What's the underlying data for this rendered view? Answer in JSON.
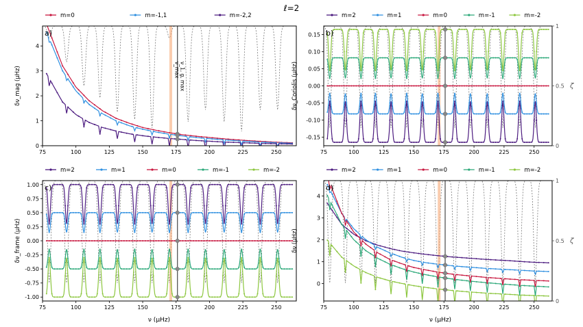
{
  "figure": {
    "suptitle": "ℓ=2",
    "x_label": "ν (μHz)"
  },
  "colors": {
    "m2": "#4b1a7f",
    "m1": "#2e8fe0",
    "m0": "#c8173f",
    "mm1": "#2aa878",
    "mm2": "#8cc63e",
    "zeta": "#555555",
    "marker_band": "#f5a36b",
    "marker_line": "#555555"
  },
  "chart_data": [
    {
      "panel": "a)",
      "type": "line",
      "ylabel": "δν_mag (μHz)",
      "xlim": [
        75,
        265
      ],
      "ylim": [
        0,
        4.8
      ],
      "xticks": [
        75,
        100,
        125,
        150,
        175,
        200,
        225,
        250
      ],
      "yticks": [
        0,
        1,
        2,
        3,
        4
      ],
      "legend": [
        "m=0",
        "m=-1,1",
        "m=-2,2"
      ],
      "annotation": "ν_max",
      "annotation2": "ν_1, g, max",
      "band_x": 171,
      "line_x": 176,
      "x": [
        80,
        90,
        100,
        110,
        120,
        130,
        140,
        150,
        160,
        170,
        180,
        190,
        200,
        210,
        220,
        230,
        240,
        250,
        260
      ],
      "series": [
        {
          "name": "m=0",
          "color_key": "m0",
          "values": [
            4.6,
            3.2,
            2.35,
            1.8,
            1.4,
            1.1,
            0.9,
            0.73,
            0.62,
            0.52,
            0.44,
            0.38,
            0.33,
            0.28,
            0.24,
            0.2,
            0.17,
            0.14,
            0.12
          ]
        },
        {
          "name": "m=-1,1",
          "color_key": "m1",
          "values": [
            4.3,
            3.0,
            2.2,
            1.65,
            1.28,
            1.0,
            0.8,
            0.66,
            0.55,
            0.46,
            0.39,
            0.33,
            0.28,
            0.24,
            0.2,
            0.17,
            0.14,
            0.12,
            0.1
          ]
        },
        {
          "name": "m=-2,2",
          "color_key": "m2",
          "values": [
            2.7,
            1.75,
            1.25,
            0.93,
            0.73,
            0.59,
            0.48,
            0.4,
            0.34,
            0.29,
            0.25,
            0.21,
            0.18,
            0.15,
            0.13,
            0.11,
            0.09,
            0.08,
            0.07
          ]
        }
      ],
      "zeta_dips": [
        80,
        93,
        106,
        118,
        131,
        144,
        157,
        170,
        184,
        197,
        211,
        224,
        238,
        251
      ],
      "zeta_dip_depth": [
        0.1,
        0.3,
        0.5,
        0.6,
        0.72,
        0.78,
        0.85,
        0.1,
        0.8,
        0.7,
        0.8,
        0.88,
        0.7,
        0.7
      ]
    },
    {
      "panel": "b)",
      "type": "line",
      "ylabel": "δν_Coriolis (μHz)",
      "y2label": "ζ",
      "xlim": [
        75,
        265
      ],
      "ylim": [
        -0.175,
        0.175
      ],
      "xticks": [
        75,
        100,
        125,
        150,
        175,
        200,
        225,
        250
      ],
      "yticks": [
        -0.15,
        -0.1,
        -0.05,
        0.0,
        0.05,
        0.1,
        0.15
      ],
      "y2ticks": [
        "0",
        "0.5",
        "1"
      ],
      "legend": [
        "m=2",
        "m=1",
        "m=0",
        "m=-1",
        "m=-2"
      ],
      "series": [
        {
          "name": "m=2",
          "color_key": "m2",
          "base": -0.165,
          "spike": 0.12
        },
        {
          "name": "m=1",
          "color_key": "m1",
          "base": -0.082,
          "spike": 0.06
        },
        {
          "name": "m=0",
          "color_key": "m0",
          "base": 0.0,
          "spike": 0.0
        },
        {
          "name": "m=-1",
          "color_key": "mm1",
          "base": 0.082,
          "spike": -0.06
        },
        {
          "name": "m=-2",
          "color_key": "mm2",
          "base": 0.165,
          "spike": -0.12
        }
      ]
    },
    {
      "panel": "c)",
      "type": "line",
      "ylabel": "δν_frame (μHz)",
      "xlim": [
        75,
        265
      ],
      "ylim": [
        -1.07,
        1.07
      ],
      "xticks": [
        75,
        100,
        125,
        150,
        175,
        200,
        225,
        250
      ],
      "yticks": [
        -1.0,
        -0.75,
        -0.5,
        -0.25,
        0.0,
        0.25,
        0.5,
        0.75,
        1.0
      ],
      "legend": [
        "m=2",
        "m=1",
        "m=0",
        "m=-1",
        "m=-2"
      ],
      "series": [
        {
          "name": "m=2",
          "color_key": "m2",
          "base": 1.0,
          "spike": -0.7
        },
        {
          "name": "m=1",
          "color_key": "m1",
          "base": 0.5,
          "spike": -0.35
        },
        {
          "name": "m=0",
          "color_key": "m0",
          "base": 0.0,
          "spike": 0.0
        },
        {
          "name": "m=-1",
          "color_key": "mm1",
          "base": -0.5,
          "spike": 0.35
        },
        {
          "name": "m=-2",
          "color_key": "mm2",
          "base": -1.0,
          "spike": 0.7
        }
      ]
    },
    {
      "panel": "d)",
      "type": "line",
      "ylabel": "δν (μHz)",
      "y2label": "ζ",
      "xlim": [
        75,
        265
      ],
      "ylim": [
        -0.8,
        4.7
      ],
      "xticks": [
        75,
        100,
        125,
        150,
        175,
        200,
        225,
        250
      ],
      "yticks": [
        0,
        1,
        2,
        3,
        4
      ],
      "y2ticks": [
        "0",
        "0.5",
        "1"
      ],
      "legend": [
        "m=2",
        "m=1",
        "m=0",
        "m=-1",
        "m=-2"
      ],
      "x": [
        80,
        90,
        100,
        110,
        120,
        130,
        140,
        150,
        160,
        170,
        180,
        190,
        200,
        210,
        220,
        230,
        240,
        250,
        260
      ],
      "series": [
        {
          "name": "m=2",
          "color_key": "m2",
          "values": [
            3.5,
            2.7,
            2.25,
            1.95,
            1.75,
            1.6,
            1.48,
            1.4,
            1.33,
            1.27,
            1.22,
            1.18,
            1.14,
            1.1,
            1.07,
            1.04,
            1.0,
            0.97,
            0.95
          ]
        },
        {
          "name": "m=1",
          "color_key": "m1",
          "values": [
            4.3,
            3.2,
            2.5,
            2.0,
            1.65,
            1.4,
            1.2,
            1.05,
            0.95,
            0.88,
            0.82,
            0.77,
            0.73,
            0.69,
            0.66,
            0.63,
            0.6,
            0.57,
            0.55
          ]
        },
        {
          "name": "m=0",
          "color_key": "m0",
          "values": [
            4.6,
            3.2,
            2.35,
            1.8,
            1.4,
            1.1,
            0.9,
            0.73,
            0.62,
            0.52,
            0.44,
            0.38,
            0.33,
            0.28,
            0.24,
            0.2,
            0.17,
            0.14,
            0.12
          ]
        },
        {
          "name": "m=-1",
          "color_key": "mm1",
          "values": [
            3.8,
            2.7,
            2.0,
            1.5,
            1.15,
            0.88,
            0.68,
            0.52,
            0.4,
            0.3,
            0.22,
            0.15,
            0.09,
            0.04,
            -0.01,
            -0.05,
            -0.09,
            -0.12,
            -0.15
          ]
        },
        {
          "name": "m=-2",
          "color_key": "mm2",
          "values": [
            1.85,
            1.2,
            0.8,
            0.5,
            0.28,
            0.12,
            0.0,
            -0.1,
            -0.18,
            -0.25,
            -0.31,
            -0.36,
            -0.4,
            -0.44,
            -0.47,
            -0.5,
            -0.53,
            -0.55,
            -0.57
          ]
        }
      ]
    }
  ]
}
